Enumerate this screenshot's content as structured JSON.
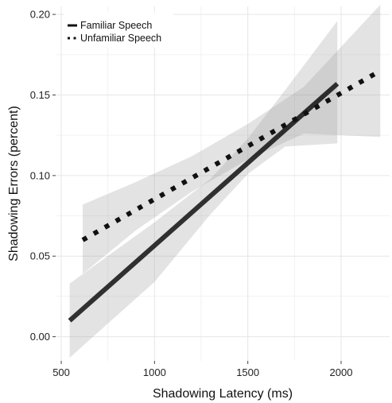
{
  "chart_data": {
    "type": "line",
    "title": "",
    "xlabel": "Shadowing Latency (ms)",
    "ylabel": "Shadowing Errors (percent)",
    "xlim": [
      470,
      2260
    ],
    "ylim": [
      -0.015,
      0.205
    ],
    "x_ticks": [
      500,
      1000,
      1500,
      2000
    ],
    "y_ticks": [
      0.0,
      0.05,
      0.1,
      0.15,
      0.2
    ],
    "x_tick_labels": [
      "500",
      "1000",
      "1500",
      "2000"
    ],
    "y_tick_labels": [
      "0.00",
      "0.05",
      "0.10",
      "0.15",
      "0.20"
    ],
    "grid": true,
    "legend_position": "top-left",
    "series": [
      {
        "name": "Familiar Speech",
        "style": "solid",
        "color": "#111111",
        "line": [
          [
            545,
            0.01
          ],
          [
            1980,
            0.157
          ]
        ],
        "ribbon": [
          [
            545,
            -0.013,
            0.033
          ],
          [
            1000,
            0.034,
            0.071
          ],
          [
            1300,
            0.076,
            0.098
          ],
          [
            1500,
            0.101,
            0.123
          ],
          [
            1700,
            0.118,
            0.153
          ],
          [
            1980,
            0.12,
            0.196
          ]
        ]
      },
      {
        "name": "Unfamiliar Speech",
        "style": "dotted",
        "color": "#111111",
        "line": [
          [
            615,
            0.06
          ],
          [
            2210,
            0.165
          ]
        ],
        "ribbon": [
          [
            615,
            0.039,
            0.082
          ],
          [
            900,
            0.066,
            0.096
          ],
          [
            1200,
            0.09,
            0.112
          ],
          [
            1500,
            0.11,
            0.132
          ],
          [
            1800,
            0.126,
            0.155
          ],
          [
            2210,
            0.124,
            0.206
          ]
        ]
      }
    ]
  }
}
